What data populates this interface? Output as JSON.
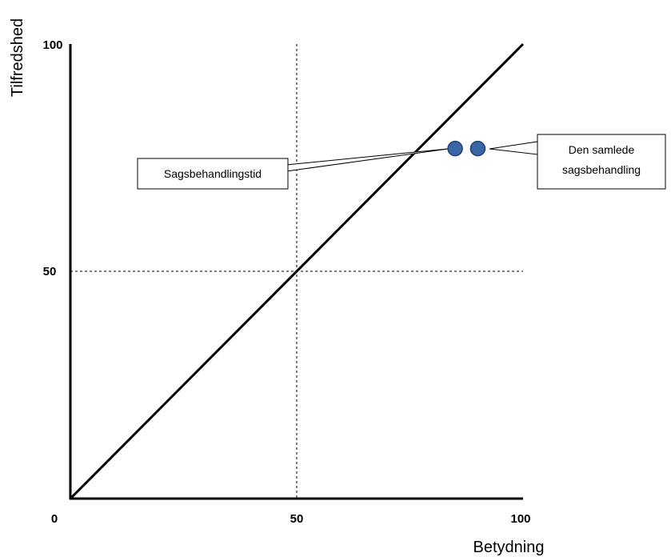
{
  "chart_data": {
    "type": "scatter",
    "xlabel": "Betydning",
    "ylabel": "Tilfredshed",
    "xlim": [
      0,
      100
    ],
    "ylim": [
      0,
      100
    ],
    "x_ticks": [
      "0",
      "50",
      "100"
    ],
    "y_ticks": [
      "50",
      "100"
    ],
    "grid": false,
    "reference_lines": {
      "diagonal": [
        [
          0,
          0
        ],
        [
          100,
          100
        ]
      ],
      "vertical_dashed_x": 50,
      "horizontal_dashed_y": 50
    },
    "point_color": "#3A66A7",
    "points": [
      {
        "x": 85,
        "y": 77,
        "label": "Sagsbehandlingstid"
      },
      {
        "x": 90,
        "y": 77,
        "label": "Den samlede sagsbehandling"
      }
    ],
    "callouts": [
      {
        "lines": [
          "Sagsbehandlingstid"
        ]
      },
      {
        "lines": [
          "Den samlede",
          "sagsbehandling"
        ]
      }
    ]
  }
}
